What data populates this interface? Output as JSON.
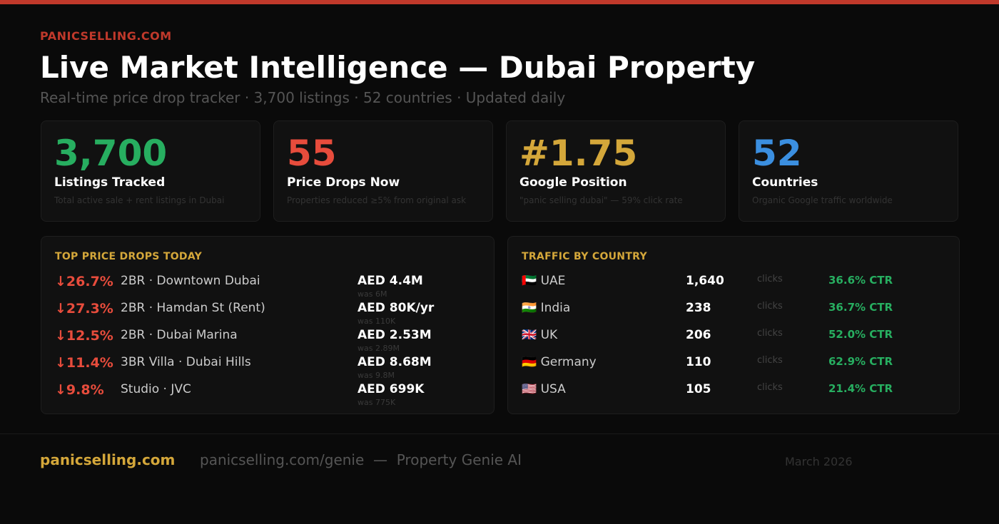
{
  "brand": "PANICSELLING.COM",
  "title": "Live Market Intelligence — Dubai Property",
  "subtitle": "Real-time price drop tracker · 3,700 listings · 52 countries · Updated daily",
  "colors": {
    "accent_red": "#c0392b",
    "green": "#27ae60",
    "red": "#e74c3c",
    "gold": "#d4a73a",
    "blue": "#3b8fe0"
  },
  "stats": [
    {
      "value": "3,700",
      "label": "Listings Tracked",
      "desc": "Total active sale + rent listings in Dubai"
    },
    {
      "value": "55",
      "label": "Price Drops Now",
      "desc": "Properties reduced ≥5% from original ask"
    },
    {
      "value": "#1.75",
      "label": "Google Position",
      "desc": "\"panic selling dubai\" — 59% click rate"
    },
    {
      "value": "52",
      "label": "Countries",
      "desc": "Organic Google traffic worldwide"
    }
  ],
  "drops": {
    "heading": "TOP PRICE DROPS TODAY",
    "items": [
      {
        "pct": "↓26.7%",
        "property": "2BR · Downtown Dubai",
        "price": "AED 4.4M",
        "was": "was 6M"
      },
      {
        "pct": "↓27.3%",
        "property": "2BR · Hamdan St (Rent)",
        "price": "AED 80K/yr",
        "was": "was 110K"
      },
      {
        "pct": "↓12.5%",
        "property": "2BR · Dubai Marina",
        "price": "AED 2.53M",
        "was": "was 2.89M"
      },
      {
        "pct": "↓11.4%",
        "property": "3BR Villa · Dubai Hills",
        "price": "AED 8.68M",
        "was": "was 9.8M"
      },
      {
        "pct": "↓9.8%",
        "property": "Studio · JVC",
        "price": "AED 699K",
        "was": "was 775K"
      }
    ]
  },
  "traffic": {
    "heading": "TRAFFIC BY COUNTRY",
    "unit": "clicks",
    "items": [
      {
        "country": "🇦🇪 UAE",
        "clicks": "1,640",
        "ctr": "36.6% CTR"
      },
      {
        "country": "🇮🇳 India",
        "clicks": "238",
        "ctr": "36.7% CTR"
      },
      {
        "country": "🇬🇧 UK",
        "clicks": "206",
        "ctr": "52.0% CTR"
      },
      {
        "country": "🇩🇪 Germany",
        "clicks": "110",
        "ctr": "62.9% CTR"
      },
      {
        "country": "🇺🇸 USA",
        "clicks": "105",
        "ctr": "21.4% CTR"
      }
    ]
  },
  "footer": {
    "site": "panicselling.com",
    "genie": "panicselling.com/genie  —  Property Genie AI",
    "date": "March 2026"
  }
}
